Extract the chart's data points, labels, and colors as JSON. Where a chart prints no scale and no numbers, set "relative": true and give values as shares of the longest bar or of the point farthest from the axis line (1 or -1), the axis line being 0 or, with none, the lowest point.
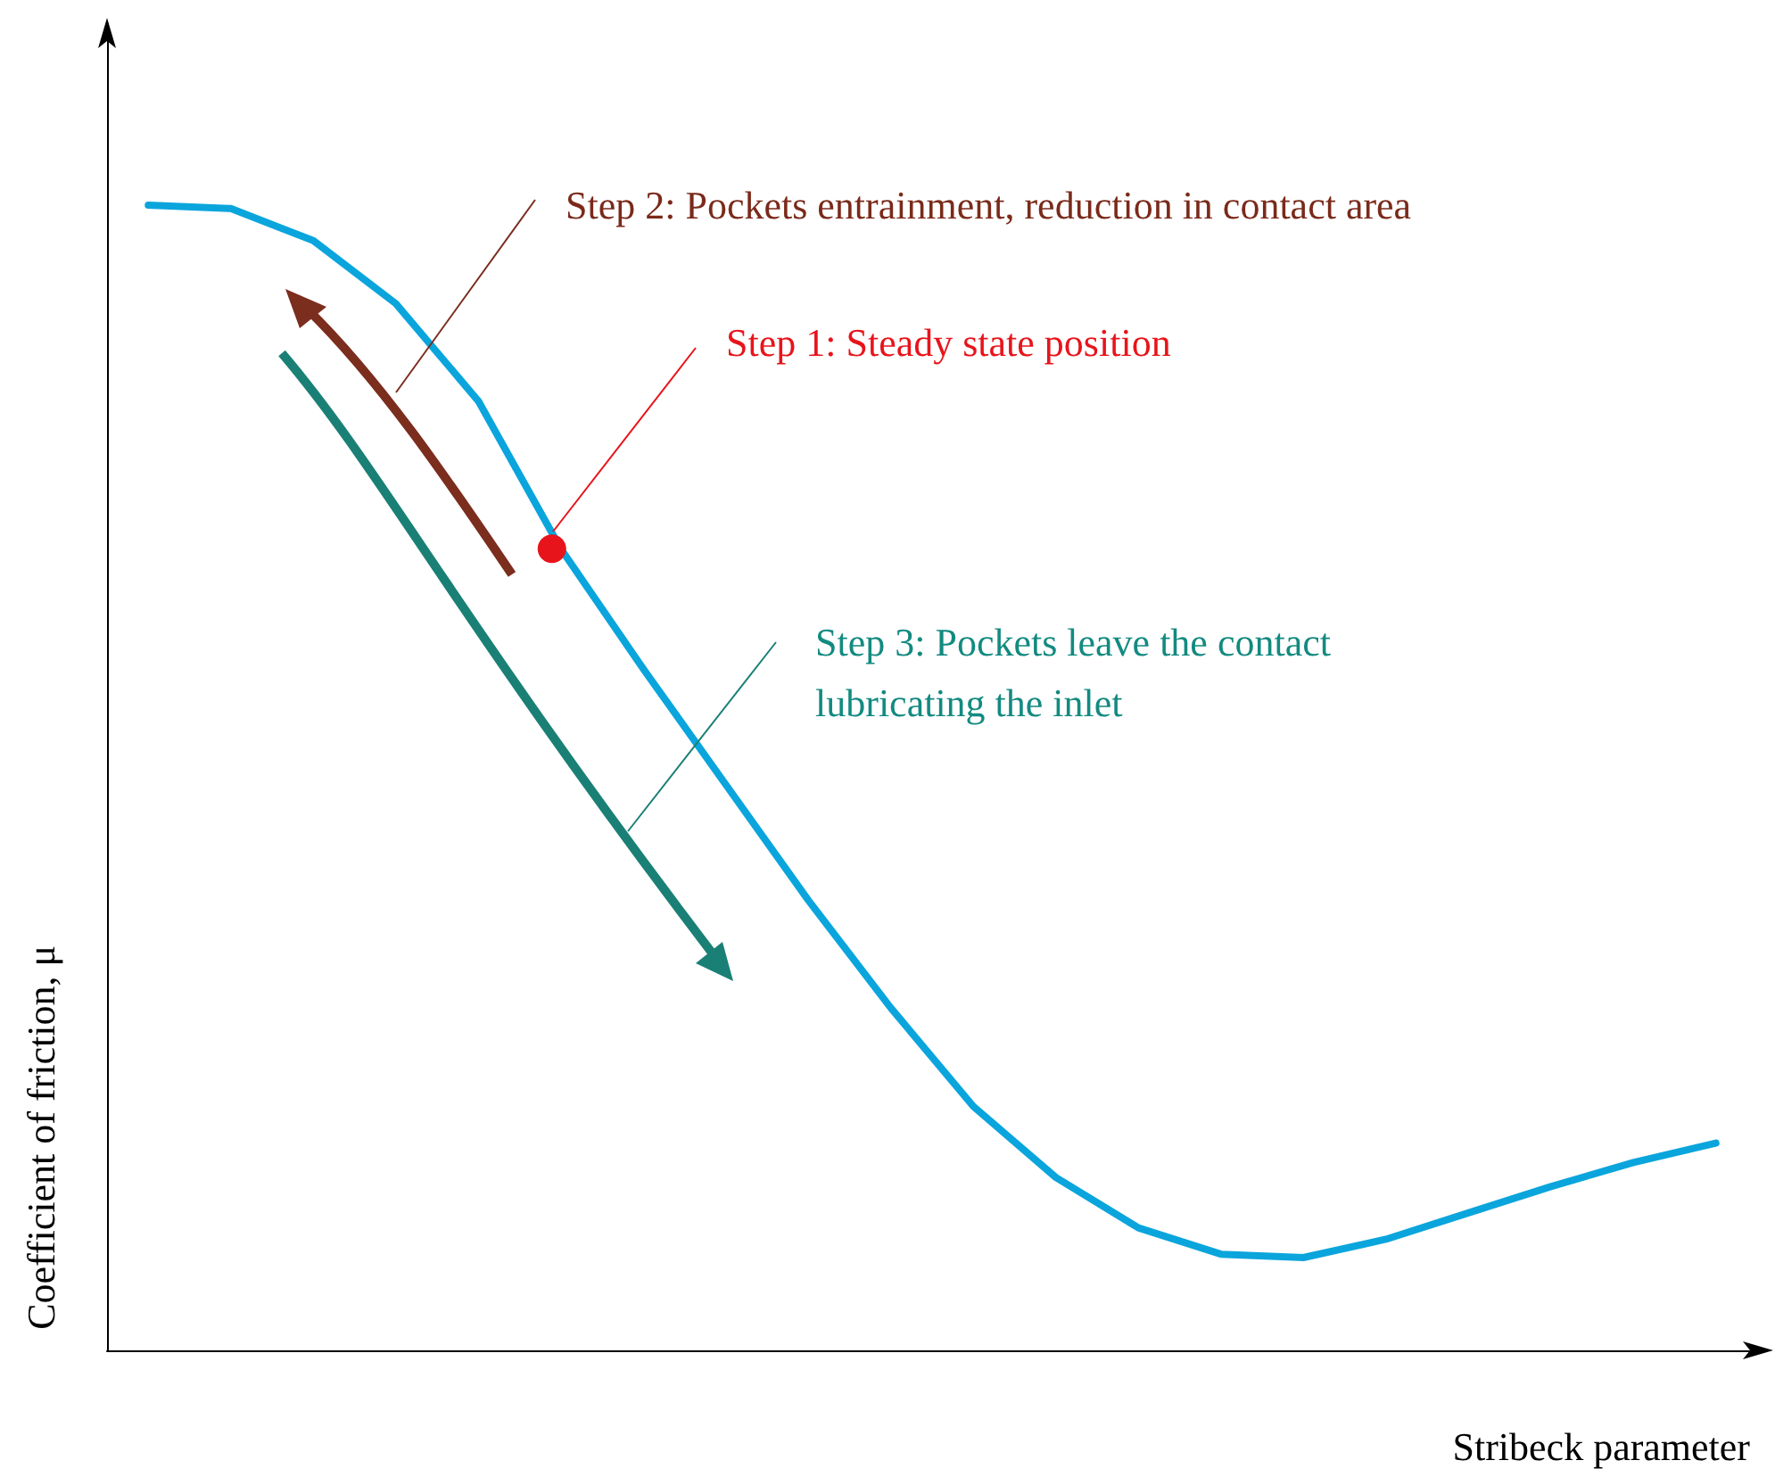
{
  "chart_data": {
    "type": "line",
    "relative": true,
    "xlabel": "Stribeck parameter",
    "ylabel": "Coefficient of friction, μ",
    "categories": [
      null,
      null,
      null,
      null,
      null,
      null,
      null,
      null,
      null,
      null,
      null,
      null,
      null,
      null,
      null,
      null,
      null,
      null,
      null,
      null
    ],
    "series": [
      {
        "color": "#0aa5dc",
        "values": [
          1.0,
          0.997,
          0.969,
          0.914,
          0.829,
          0.7,
          0.595,
          0.494,
          0.393,
          0.299,
          0.213,
          0.151,
          0.107,
          0.084,
          0.081,
          0.097,
          0.12,
          0.143,
          0.164,
          0.181
        ]
      }
    ],
    "annotations": [
      "Step 2: Pockets entrainment, reduction in contact area",
      "Step 1: Steady state position",
      "Step 3: Pockets leave the contact lubricating the inlet"
    ],
    "grid": false,
    "marker": "none",
    "line_style": "solid"
  }
}
